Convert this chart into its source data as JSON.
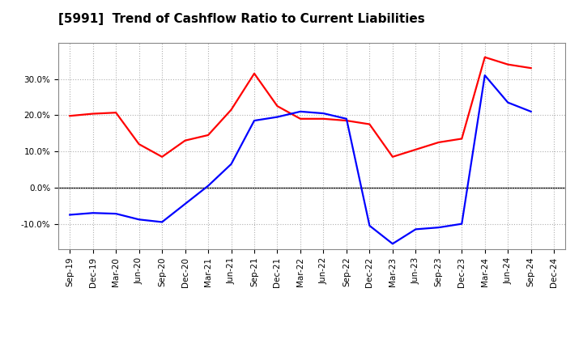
{
  "title": "[5991]  Trend of Cashflow Ratio to Current Liabilities",
  "x_labels": [
    "Sep-19",
    "Dec-19",
    "Mar-20",
    "Jun-20",
    "Sep-20",
    "Dec-20",
    "Mar-21",
    "Jun-21",
    "Sep-21",
    "Dec-21",
    "Mar-22",
    "Jun-22",
    "Sep-22",
    "Dec-22",
    "Mar-23",
    "Jun-23",
    "Sep-23",
    "Dec-23",
    "Mar-24",
    "Jun-24",
    "Sep-24",
    "Dec-24"
  ],
  "operating_cf": [
    19.8,
    20.4,
    20.7,
    12.0,
    8.5,
    13.0,
    14.5,
    21.5,
    31.5,
    22.5,
    19.0,
    19.0,
    18.5,
    17.5,
    8.5,
    10.5,
    12.5,
    13.5,
    36.0,
    34.0,
    33.0,
    null
  ],
  "free_cf": [
    -7.5,
    -7.0,
    -7.2,
    -8.8,
    -9.5,
    -4.5,
    0.5,
    6.5,
    18.5,
    19.5,
    21.0,
    20.5,
    19.0,
    -10.5,
    -15.5,
    -11.5,
    -11.0,
    -10.0,
    31.0,
    23.5,
    21.0,
    null
  ],
  "ylim": [
    -17,
    40
  ],
  "yticks": [
    -10,
    0,
    10,
    20,
    30
  ],
  "operating_color": "#ff0000",
  "free_color": "#0000ff",
  "background_color": "#ffffff",
  "grid_color": "#b0b0b0",
  "line_width": 1.6,
  "title_fontsize": 11,
  "tick_fontsize": 7.5,
  "legend_fontsize": 9
}
